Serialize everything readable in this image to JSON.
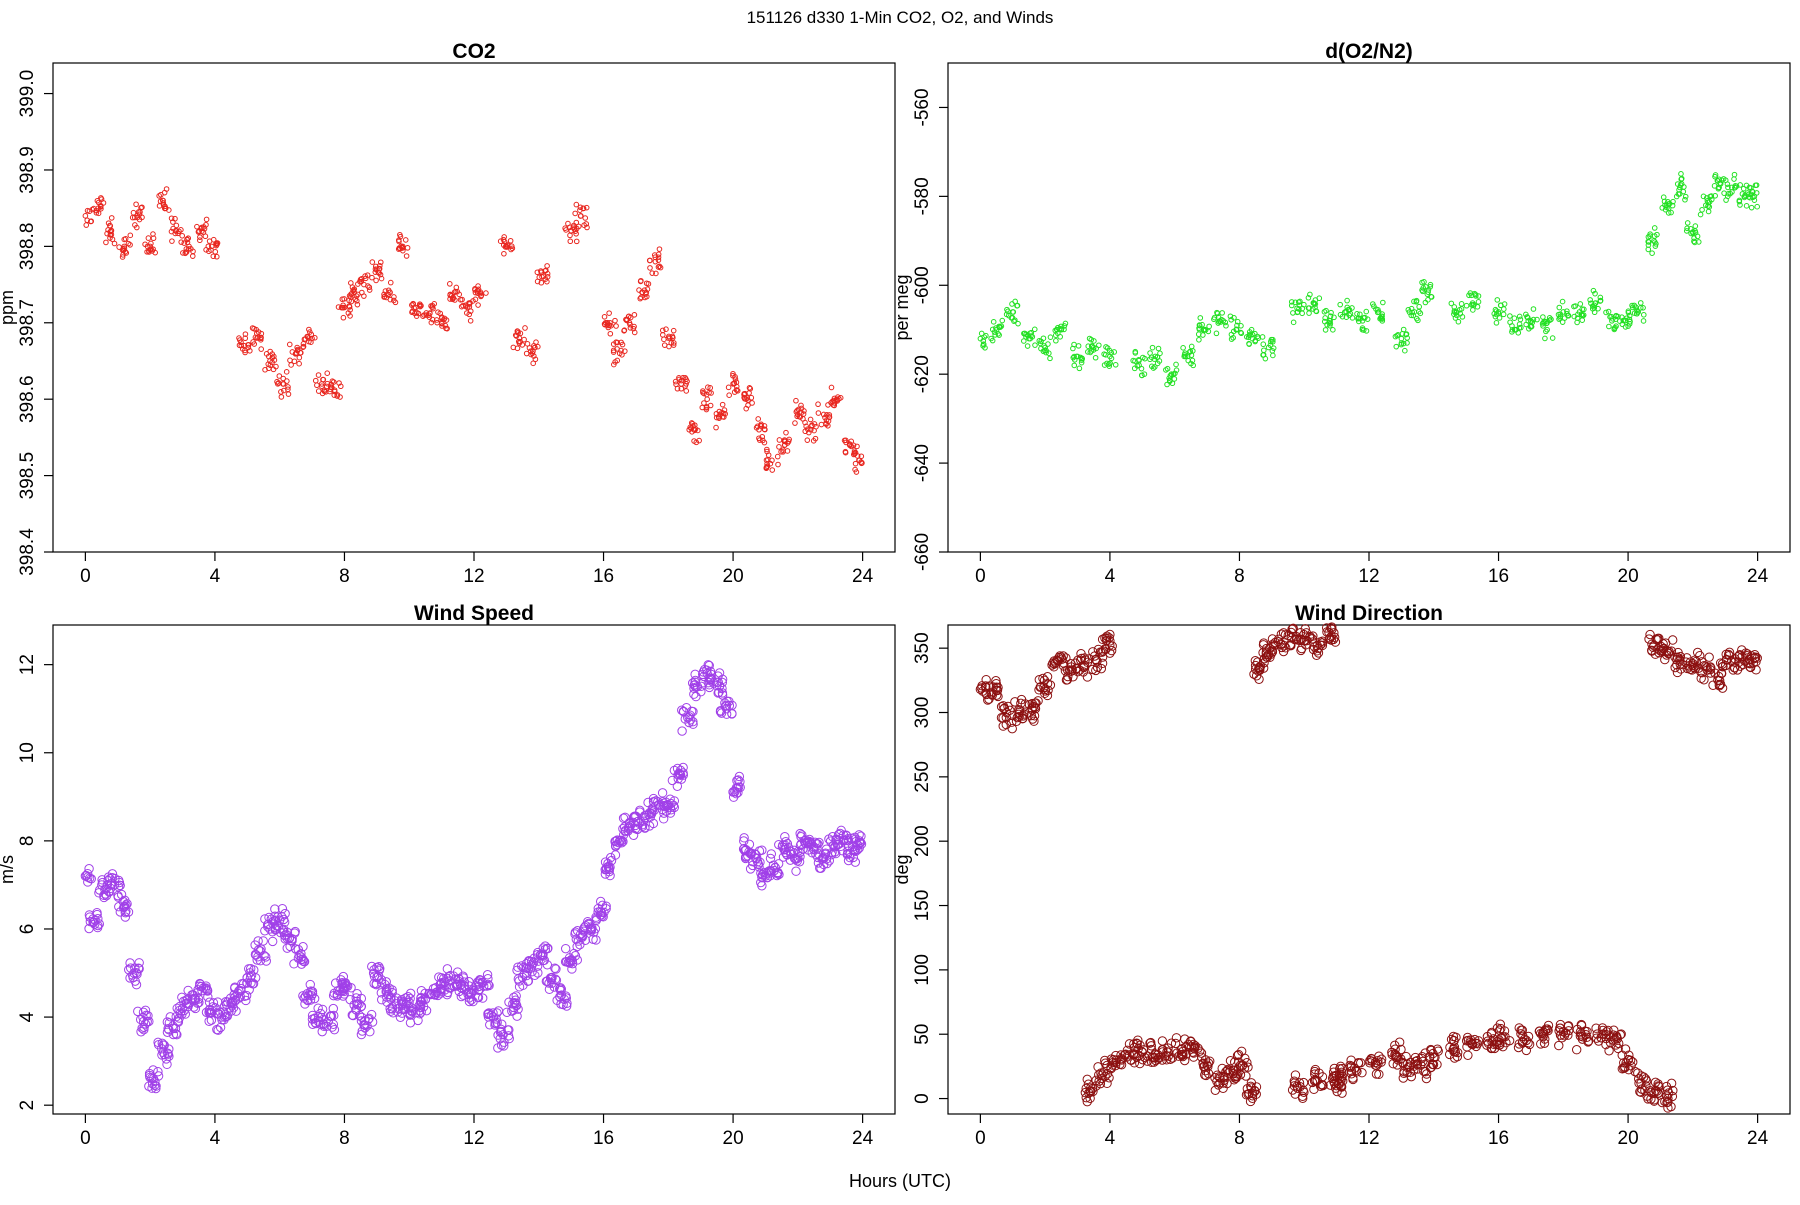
{
  "figure": {
    "suptitle": "151126   d330   1-Min CO2, O2, and Winds",
    "xlabel": "Hours (UTC)"
  },
  "chart_data": [
    {
      "type": "scatter",
      "title": "CO2",
      "xlabel": "",
      "ylabel": "ppm",
      "xlim": [
        -1,
        25
      ],
      "ylim": [
        398.4,
        399.04
      ],
      "x_ticks": [
        "0",
        "4",
        "8",
        "12",
        "16",
        "20",
        "24"
      ],
      "y_ticks": [
        "398.4",
        "398.5",
        "398.6",
        "398.7",
        "398.8",
        "398.9",
        "399.0"
      ],
      "color": "#e8261f",
      "series": [
        {
          "x": [
            0,
            0.4,
            0.8,
            1.2,
            1.6,
            2.0,
            2.4,
            2.8,
            3.2,
            3.6,
            3.9,
            4.9,
            5.3,
            5.7,
            6.1,
            6.5,
            6.9,
            7.3,
            7.7,
            8.0,
            8.3,
            8.6,
            9.0,
            9.4,
            9.8,
            10.2,
            10.6,
            11.0,
            11.4,
            11.8,
            12.2,
            13.0,
            13.4,
            13.8,
            14.1,
            15.0,
            15.3,
            16.2,
            16.5,
            16.8,
            17.2,
            17.6,
            18.0,
            18.4,
            18.8,
            19.2,
            19.6,
            20.0,
            20.4,
            20.8,
            21.2,
            21.6,
            22.0,
            22.4,
            22.8,
            23.2,
            23.6,
            23.9
          ],
          "y": [
            398.84,
            398.85,
            398.82,
            398.8,
            398.84,
            398.8,
            398.86,
            398.82,
            398.8,
            398.82,
            398.8,
            398.67,
            398.68,
            398.65,
            398.62,
            398.66,
            398.68,
            398.62,
            398.61,
            398.72,
            398.74,
            398.75,
            398.77,
            398.74,
            398.8,
            398.72,
            398.71,
            398.7,
            398.74,
            398.72,
            398.74,
            398.8,
            398.68,
            398.66,
            398.76,
            398.82,
            398.84,
            398.7,
            398.66,
            398.7,
            398.74,
            398.78,
            398.68,
            398.62,
            398.56,
            398.6,
            398.58,
            398.62,
            398.6,
            398.56,
            398.52,
            398.54,
            398.58,
            398.56,
            398.58,
            398.6,
            398.54,
            398.52
          ]
        }
      ]
    },
    {
      "type": "scatter",
      "title": "d(O2/N2)",
      "xlabel": "",
      "ylabel": "per meg",
      "xlim": [
        -1,
        25
      ],
      "ylim": [
        -660,
        -550
      ],
      "x_ticks": [
        "0",
        "4",
        "8",
        "12",
        "16",
        "20",
        "24"
      ],
      "y_ticks": [
        "-660",
        "-640",
        "-620",
        "-600",
        "-580",
        "-560"
      ],
      "color": "#22e022",
      "series": [
        {
          "x": [
            0,
            0.5,
            1.0,
            1.5,
            2.0,
            2.5,
            3.0,
            3.5,
            4.0,
            4.9,
            5.4,
            5.9,
            6.4,
            6.9,
            7.4,
            7.9,
            8.4,
            8.9,
            9.8,
            10.3,
            10.8,
            11.3,
            11.8,
            12.3,
            13.0,
            13.4,
            13.8,
            14.7,
            15.2,
            16.0,
            16.5,
            17.0,
            17.5,
            18.0,
            18.5,
            19.0,
            19.5,
            19.9,
            20.3,
            20.8,
            21.2,
            21.6,
            22.0,
            22.4,
            22.8,
            23.2,
            23.6,
            23.9
          ],
          "y": [
            -612,
            -610,
            -606,
            -612,
            -614,
            -610,
            -616,
            -614,
            -616,
            -618,
            -616,
            -620,
            -616,
            -610,
            -608,
            -610,
            -612,
            -614,
            -606,
            -604,
            -608,
            -606,
            -608,
            -606,
            -612,
            -606,
            -602,
            -606,
            -604,
            -606,
            -610,
            -608,
            -610,
            -606,
            -606,
            -604,
            -608,
            -608,
            -606,
            -590,
            -582,
            -578,
            -588,
            -582,
            -578,
            -578,
            -580,
            -580
          ]
        }
      ]
    },
    {
      "type": "scatter",
      "title": "Wind Speed",
      "xlabel": "",
      "ylabel": "m/s",
      "xlim": [
        -1,
        25
      ],
      "ylim": [
        1.8,
        12.9
      ],
      "x_ticks": [
        "0",
        "4",
        "8",
        "12",
        "16",
        "20",
        "24"
      ],
      "y_ticks": [
        "2",
        "4",
        "6",
        "8",
        "10",
        "12"
      ],
      "color": "#a040e8",
      "series": [
        {
          "x": [
            0,
            0.3,
            0.6,
            0.9,
            1.2,
            1.5,
            1.8,
            2.1,
            2.4,
            2.7,
            3.0,
            3.3,
            3.6,
            3.9,
            4.2,
            4.5,
            4.8,
            5.1,
            5.4,
            5.7,
            6.0,
            6.3,
            6.6,
            6.9,
            7.2,
            7.5,
            7.8,
            8.1,
            8.4,
            8.7,
            9.0,
            9.3,
            9.6,
            9.9,
            10.2,
            10.5,
            10.8,
            11.1,
            11.4,
            11.7,
            12.0,
            12.3,
            12.6,
            12.9,
            13.2,
            13.5,
            13.8,
            14.1,
            14.4,
            14.7,
            15.0,
            15.3,
            15.6,
            15.9,
            16.2,
            16.5,
            16.8,
            17.1,
            17.4,
            17.7,
            18.0,
            18.3,
            18.6,
            18.9,
            19.2,
            19.5,
            19.8,
            20.1,
            20.4,
            20.7,
            21.0,
            21.3,
            21.6,
            21.9,
            22.2,
            22.5,
            22.8,
            23.1,
            23.4,
            23.7,
            23.9
          ],
          "y": [
            7.2,
            6.2,
            6.9,
            7.0,
            6.5,
            5.0,
            3.9,
            2.6,
            3.2,
            3.8,
            4.2,
            4.4,
            4.6,
            4.1,
            4.0,
            4.3,
            4.6,
            4.9,
            5.5,
            6.0,
            6.2,
            5.8,
            5.4,
            4.5,
            4.0,
            3.9,
            4.6,
            4.7,
            4.3,
            3.8,
            4.9,
            4.6,
            4.3,
            4.3,
            4.1,
            4.4,
            4.5,
            4.8,
            4.7,
            4.7,
            4.6,
            4.7,
            4.0,
            3.6,
            4.3,
            4.9,
            5.2,
            5.4,
            4.9,
            4.5,
            5.3,
            5.8,
            6.0,
            6.4,
            7.4,
            8.0,
            8.3,
            8.4,
            8.6,
            8.8,
            8.8,
            9.5,
            10.8,
            11.5,
            11.8,
            11.6,
            11.0,
            9.2,
            7.8,
            7.6,
            7.2,
            7.4,
            7.8,
            7.6,
            8.0,
            7.8,
            7.6,
            7.9,
            8.0,
            7.8,
            8.0
          ]
        }
      ]
    },
    {
      "type": "scatter",
      "title": "Wind Direction",
      "xlabel": "",
      "ylabel": "deg",
      "xlim": [
        -1,
        25
      ],
      "ylim": [
        -12,
        368
      ],
      "x_ticks": [
        "0",
        "4",
        "8",
        "12",
        "16",
        "20",
        "24"
      ],
      "y_ticks": [
        "0",
        "50",
        "100",
        "150",
        "200",
        "250",
        "300",
        "350"
      ],
      "color": "#8c1010",
      "series": [
        {
          "x": [
            0,
            0.4,
            0.8,
            1.2,
            1.6,
            2.0,
            2.4,
            2.8,
            3.2,
            3.6,
            3.9,
            3.4,
            3.8,
            4.2,
            4.6,
            5.0,
            5.4,
            5.8,
            6.2,
            6.6,
            7.0,
            7.4,
            7.8,
            8.1,
            8.4,
            8.6,
            8.9,
            9.2,
            9.6,
            10.0,
            10.4,
            10.8,
            11.0,
            9.8,
            10.4,
            11.0,
            11.6,
            12.2,
            12.8,
            13.2,
            13.6,
            14.0,
            14.6,
            15.2,
            15.8,
            16.2,
            16.8,
            17.4,
            18.0,
            18.6,
            19.2,
            19.6,
            20.0,
            20.4,
            20.8,
            21.2,
            20.8,
            21.2,
            21.6,
            22.0,
            22.4,
            22.8,
            23.2,
            23.6,
            23.9
          ],
          "y": [
            318,
            316,
            296,
            300,
            302,
            318,
            340,
            332,
            335,
            340,
            356,
            5,
            20,
            30,
            34,
            36,
            34,
            36,
            38,
            40,
            26,
            16,
            22,
            26,
            4,
            335,
            345,
            355,
            358,
            356,
            352,
            358,
            10,
            8,
            14,
            18,
            22,
            28,
            34,
            24,
            26,
            32,
            38,
            42,
            44,
            48,
            46,
            50,
            52,
            48,
            50,
            46,
            30,
            12,
            4,
            2,
            352,
            348,
            340,
            338,
            336,
            328,
            340,
            340,
            342
          ]
        }
      ]
    }
  ]
}
